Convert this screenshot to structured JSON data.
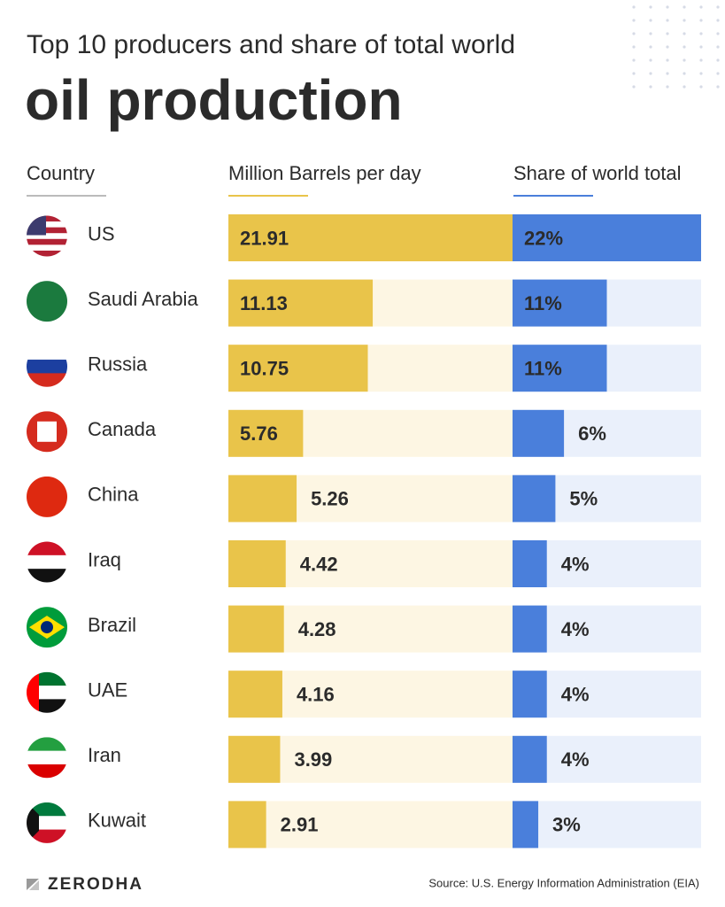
{
  "title_line1": "Top 10 producers and share of total world",
  "title_line2": "oil production",
  "country_header": "Country",
  "chart_data": [
    {
      "type": "bar",
      "orientation": "horizontal",
      "title": "Million Barrels per day",
      "categories": [
        "US",
        "Saudi Arabia",
        "Russia",
        "Canada",
        "China",
        "Iraq",
        "Brazil",
        "UAE",
        "Iran",
        "Kuwait"
      ],
      "values": [
        21.91,
        11.13,
        10.75,
        5.76,
        5.26,
        4.42,
        4.28,
        4.16,
        3.99,
        2.91
      ],
      "color": "#e9c44a",
      "track_color": "#fdf6e3",
      "xlim": [
        0,
        21.91
      ]
    },
    {
      "type": "bar",
      "orientation": "horizontal",
      "title": "Share of world total",
      "values": [
        22,
        11,
        11,
        6,
        5,
        4,
        4,
        4,
        4,
        3
      ],
      "value_labels": [
        "22%",
        "11%",
        "11%",
        "6%",
        "5%",
        "4%",
        "4%",
        "4%",
        "4%",
        "3%"
      ],
      "color": "#4a7fdb",
      "track_color": "#eaf0fb",
      "xlim": [
        0,
        22
      ]
    }
  ],
  "brand": "ZERODHA",
  "source": "Source: U.S. Energy Information Administration (EIA)"
}
